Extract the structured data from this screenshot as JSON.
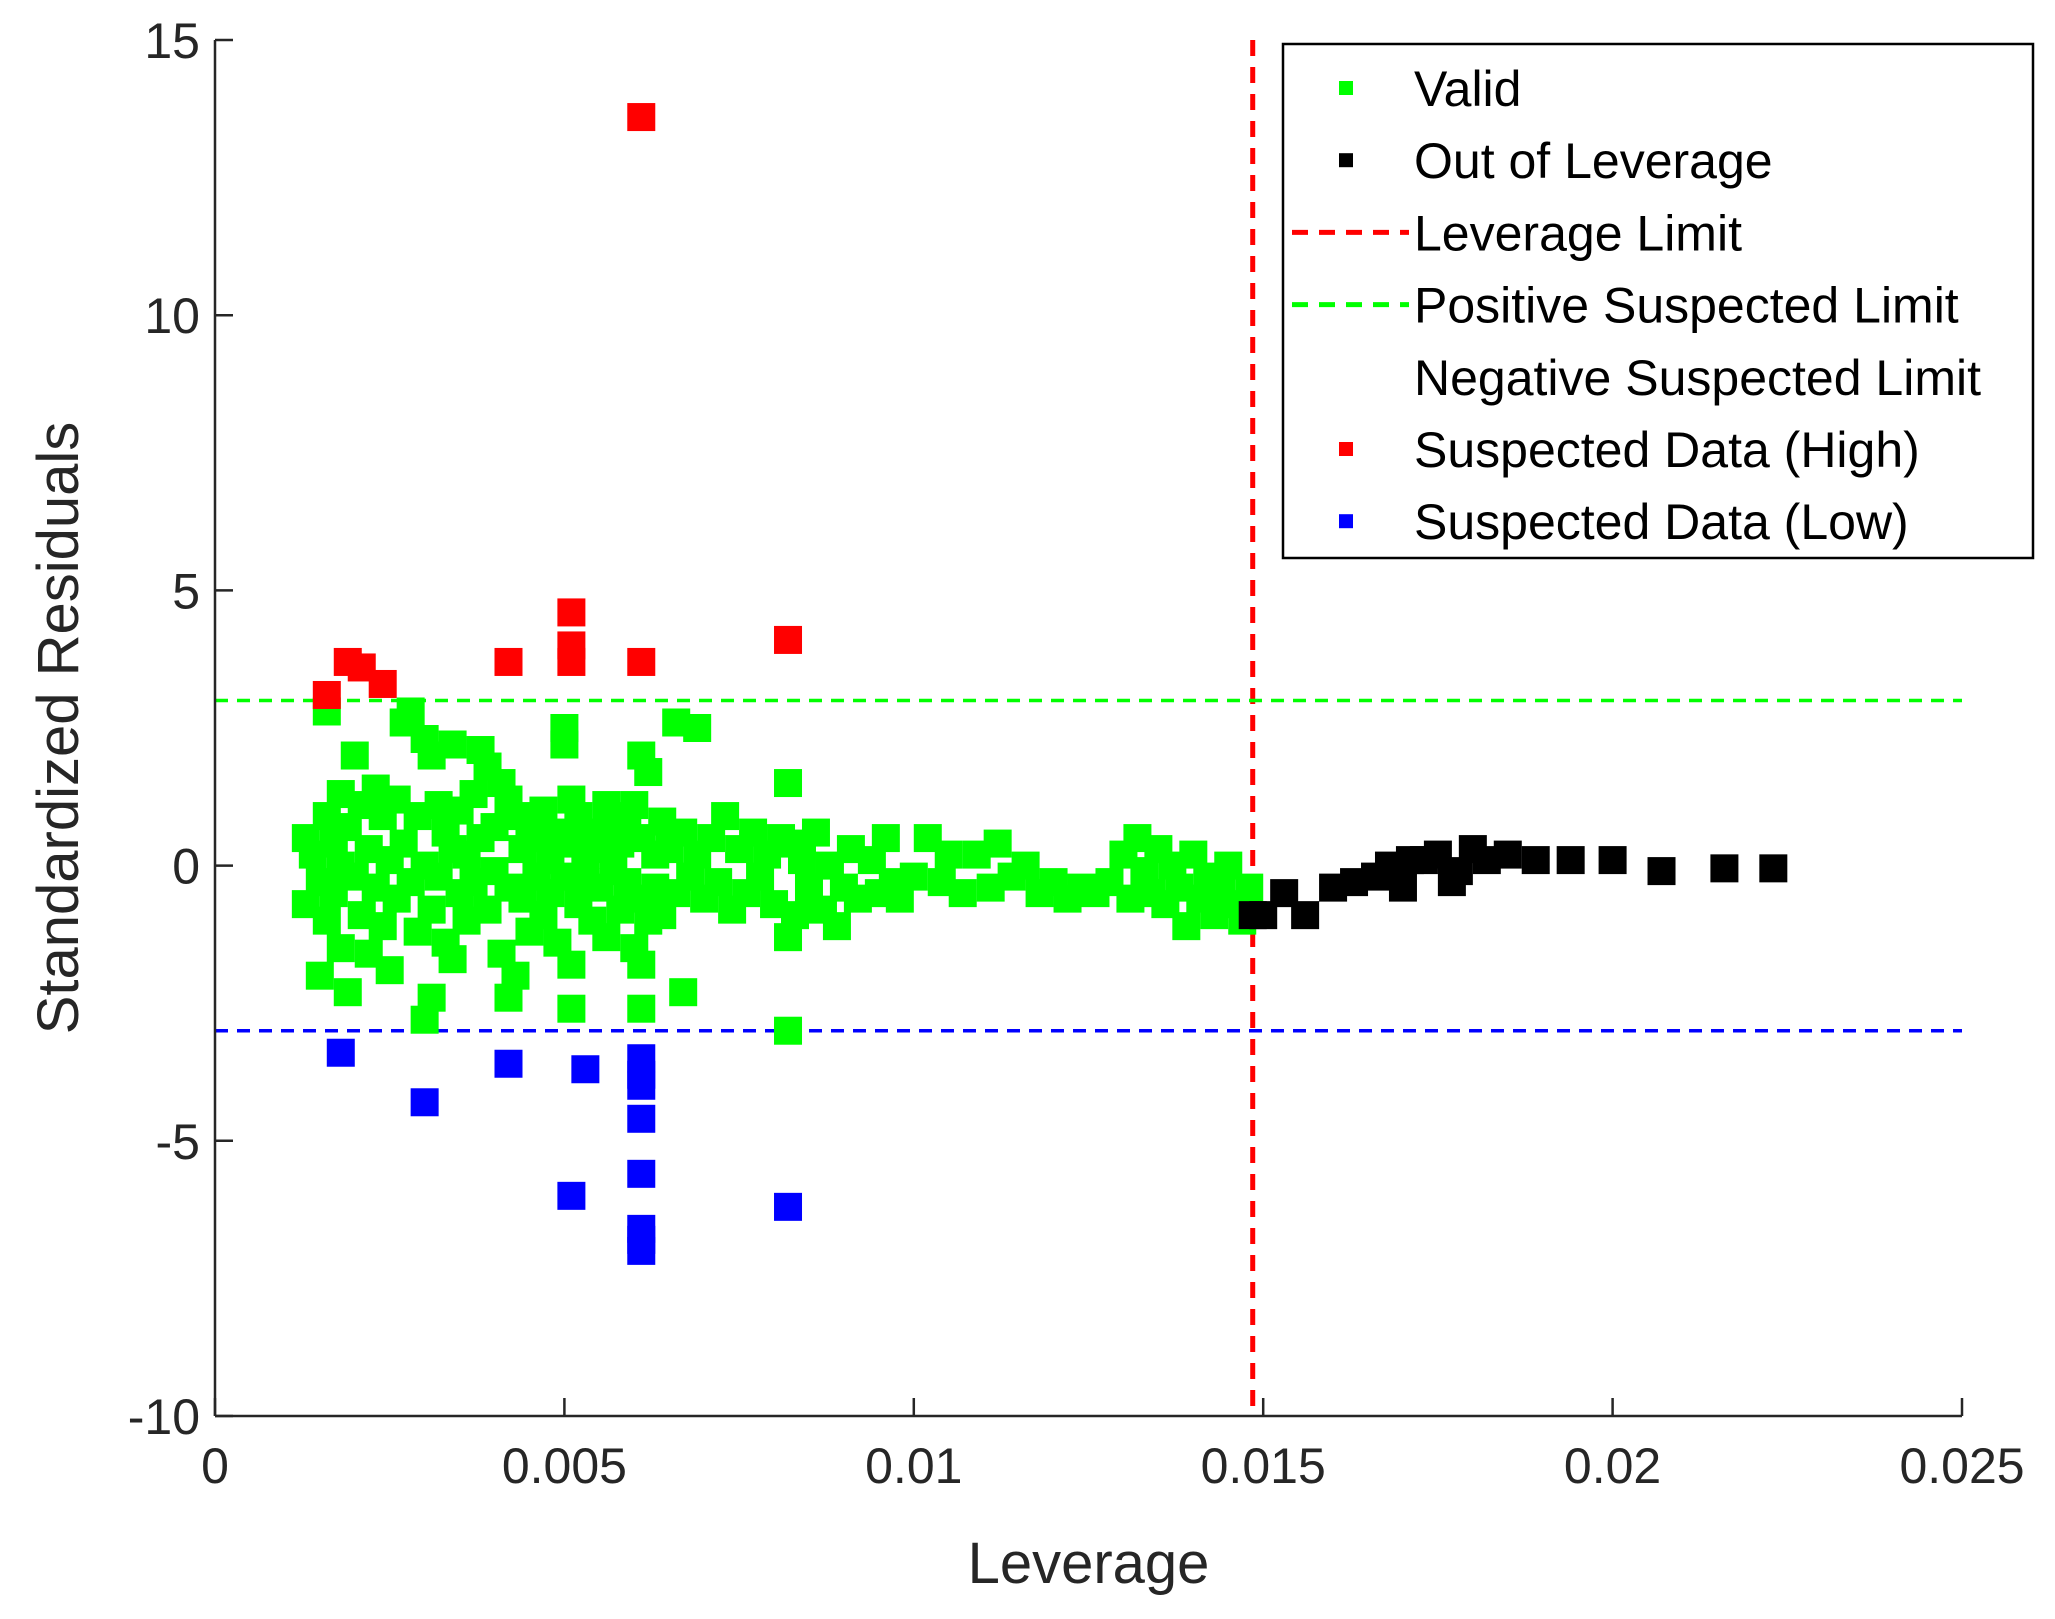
{
  "chart_data": {
    "type": "scatter",
    "title": "",
    "xlabel": "Leverage",
    "ylabel": "Standardized Residuals",
    "xlim": [
      0,
      0.025
    ],
    "ylim": [
      -10,
      15
    ],
    "xticks": [
      0,
      0.005,
      0.01,
      0.015,
      0.02,
      0.025
    ],
    "xtick_labels": [
      "0",
      "0.005",
      "0.01",
      "0.015",
      "0.02",
      "0.025"
    ],
    "yticks": [
      -10,
      -5,
      0,
      5,
      10,
      15
    ],
    "ytick_labels": [
      "-10",
      "-5",
      "0",
      "5",
      "10",
      "15"
    ],
    "grid": false,
    "legend_position": "top-right",
    "reference_lines": [
      {
        "name": "Leverage Limit",
        "orientation": "vertical",
        "value": 0.01485,
        "color": "#ff0000",
        "style": "dashed"
      },
      {
        "name": "Positive Suspected Limit",
        "orientation": "horizontal",
        "value": 3,
        "color": "#00ff00",
        "style": "dashed"
      },
      {
        "name": "Negative Suspected Limit",
        "orientation": "horizontal",
        "value": -3,
        "color": "#0000ff",
        "style": "dashed"
      }
    ],
    "legend": [
      {
        "label": "Valid",
        "kind": "marker",
        "color": "#00ff00"
      },
      {
        "label": "Out of Leverage",
        "kind": "marker",
        "color": "#000000"
      },
      {
        "label": "Leverage Limit",
        "kind": "line",
        "color": "#ff0000"
      },
      {
        "label": "Positive Suspected Limit",
        "kind": "line",
        "color": "#00ff00"
      },
      {
        "label": "Negative Suspected Limit",
        "kind": "none",
        "color": "#0000ff"
      },
      {
        "label": "Suspected Data (High)",
        "kind": "marker",
        "color": "#ff0000"
      },
      {
        "label": "Suspected Data (Low)",
        "kind": "marker",
        "color": "#0000ff"
      }
    ],
    "series": [
      {
        "name": "Valid",
        "color": "#00ff00",
        "points": [
          [
            0.0013,
            0.5
          ],
          [
            0.0013,
            -0.7
          ],
          [
            0.0014,
            0.2
          ],
          [
            0.0015,
            -2.0
          ],
          [
            0.0015,
            -0.3
          ],
          [
            0.0016,
            2.8
          ],
          [
            0.0016,
            0.9
          ],
          [
            0.0016,
            -1.0
          ],
          [
            0.0017,
            0.4
          ],
          [
            0.0017,
            -0.5
          ],
          [
            0.0018,
            1.3
          ],
          [
            0.0018,
            0.0
          ],
          [
            0.0018,
            -1.5
          ],
          [
            0.0019,
            -2.3
          ],
          [
            0.0019,
            0.7
          ],
          [
            0.002,
            2.0
          ],
          [
            0.002,
            -0.2
          ],
          [
            0.0021,
            1.1
          ],
          [
            0.0021,
            -0.9
          ],
          [
            0.0022,
            0.3
          ],
          [
            0.0022,
            -1.6
          ],
          [
            0.0023,
            1.4
          ],
          [
            0.0023,
            -0.4
          ],
          [
            0.0024,
            0.9
          ],
          [
            0.0024,
            -1.1
          ],
          [
            0.0025,
            0.1
          ],
          [
            0.0025,
            -1.9
          ],
          [
            0.0026,
            1.2
          ],
          [
            0.0026,
            -0.6
          ],
          [
            0.0027,
            2.6
          ],
          [
            0.0027,
            0.4
          ],
          [
            0.0028,
            -0.3
          ],
          [
            0.0028,
            2.8
          ],
          [
            0.0029,
            -1.2
          ],
          [
            0.0029,
            0.9
          ],
          [
            0.003,
            2.3
          ],
          [
            0.003,
            -2.8
          ],
          [
            0.003,
            0.0
          ],
          [
            0.0031,
            2.0
          ],
          [
            0.0031,
            -2.4
          ],
          [
            0.0031,
            -0.8
          ],
          [
            0.0032,
            1.1
          ],
          [
            0.0032,
            -0.2
          ],
          [
            0.0033,
            0.6
          ],
          [
            0.0033,
            -1.4
          ],
          [
            0.0034,
            2.2
          ],
          [
            0.0034,
            -1.7
          ],
          [
            0.0034,
            0.3
          ],
          [
            0.0035,
            -0.5
          ],
          [
            0.0035,
            1.0
          ],
          [
            0.0036,
            0.2
          ],
          [
            0.0036,
            -1.0
          ],
          [
            0.0037,
            1.3
          ],
          [
            0.0037,
            -0.3
          ],
          [
            0.0038,
            2.1
          ],
          [
            0.0038,
            0.5
          ],
          [
            0.0039,
            -0.8
          ],
          [
            0.0039,
            1.8
          ],
          [
            0.004,
            -0.1
          ],
          [
            0.004,
            0.7
          ],
          [
            0.0041,
            -1.6
          ],
          [
            0.0041,
            1.5
          ],
          [
            0.0042,
            -2.4
          ],
          [
            0.0042,
            -0.4
          ],
          [
            0.0042,
            1.2
          ],
          [
            0.0043,
            -2.0
          ],
          [
            0.0043,
            0.9
          ],
          [
            0.0044,
            -0.6
          ],
          [
            0.0044,
            0.3
          ],
          [
            0.0045,
            -1.2
          ],
          [
            0.0045,
            0.8
          ],
          [
            0.0046,
            -0.2
          ],
          [
            0.0046,
            0.5
          ],
          [
            0.0047,
            -0.9
          ],
          [
            0.0047,
            1.0
          ],
          [
            0.0048,
            0.1
          ],
          [
            0.0048,
            -0.5
          ],
          [
            0.0049,
            -1.4
          ],
          [
            0.0049,
            0.6
          ],
          [
            0.005,
            -0.2
          ],
          [
            0.005,
            2.5
          ],
          [
            0.005,
            2.2
          ],
          [
            0.0051,
            1.2
          ],
          [
            0.0051,
            -1.8
          ],
          [
            0.0051,
            -2.6
          ],
          [
            0.0051,
            0.4
          ],
          [
            0.0052,
            -0.7
          ],
          [
            0.0052,
            0.9
          ],
          [
            0.0053,
            -0.3
          ],
          [
            0.0053,
            0.2
          ],
          [
            0.0054,
            -1.0
          ],
          [
            0.0054,
            0.6
          ],
          [
            0.0055,
            -0.4
          ],
          [
            0.0055,
            0.3
          ],
          [
            0.0056,
            -1.3
          ],
          [
            0.0056,
            1.1
          ],
          [
            0.0057,
            -0.1
          ],
          [
            0.0057,
            0.7
          ],
          [
            0.0058,
            -0.8
          ],
          [
            0.0058,
            0.4
          ],
          [
            0.0059,
            -0.3
          ],
          [
            0.0059,
            0.9
          ],
          [
            0.006,
            -1.5
          ],
          [
            0.006,
            1.1
          ],
          [
            0.0061,
            2.0
          ],
          [
            0.0061,
            -2.6
          ],
          [
            0.0061,
            -1.8
          ],
          [
            0.0061,
            -0.6
          ],
          [
            0.0061,
            0.5
          ],
          [
            0.0062,
            1.7
          ],
          [
            0.0062,
            -1.0
          ],
          [
            0.0063,
            0.2
          ],
          [
            0.0063,
            -0.4
          ],
          [
            0.0064,
            0.8
          ],
          [
            0.0064,
            -0.9
          ],
          [
            0.0065,
            0.3
          ],
          [
            0.0066,
            2.6
          ],
          [
            0.0066,
            -0.5
          ],
          [
            0.0067,
            -2.3
          ],
          [
            0.0067,
            0.6
          ],
          [
            0.0068,
            -0.2
          ],
          [
            0.0069,
            0.2
          ],
          [
            0.0069,
            2.5
          ],
          [
            0.007,
            -0.6
          ],
          [
            0.0071,
            0.5
          ],
          [
            0.0072,
            -0.3
          ],
          [
            0.0073,
            0.9
          ],
          [
            0.0074,
            -0.8
          ],
          [
            0.0075,
            0.3
          ],
          [
            0.0076,
            -0.5
          ],
          [
            0.0077,
            0.6
          ],
          [
            0.0078,
            -0.2
          ],
          [
            0.0079,
            0.2
          ],
          [
            0.008,
            -0.7
          ],
          [
            0.0081,
            0.5
          ],
          [
            0.0082,
            1.5
          ],
          [
            0.0082,
            -1.3
          ],
          [
            0.0082,
            -3.0
          ],
          [
            0.0083,
            0.4
          ],
          [
            0.0083,
            -0.9
          ],
          [
            0.0084,
            0.1
          ],
          [
            0.0085,
            -0.4
          ],
          [
            0.0086,
            0.6
          ],
          [
            0.0087,
            -0.8
          ],
          [
            0.0088,
            0.0
          ],
          [
            0.0089,
            -1.1
          ],
          [
            0.009,
            -0.4
          ],
          [
            0.0091,
            0.3
          ],
          [
            0.0092,
            -0.6
          ],
          [
            0.0094,
            0.1
          ],
          [
            0.0095,
            -0.5
          ],
          [
            0.0096,
            0.5
          ],
          [
            0.0097,
            -0.3
          ],
          [
            0.0098,
            -0.6
          ],
          [
            0.01,
            -0.2
          ],
          [
            0.0102,
            0.5
          ],
          [
            0.0104,
            -0.3
          ],
          [
            0.0105,
            0.2
          ],
          [
            0.0107,
            -0.5
          ],
          [
            0.0109,
            0.2
          ],
          [
            0.0111,
            -0.4
          ],
          [
            0.0112,
            0.4
          ],
          [
            0.0114,
            -0.2
          ],
          [
            0.0116,
            0.0
          ],
          [
            0.0118,
            -0.5
          ],
          [
            0.012,
            -0.3
          ],
          [
            0.0122,
            -0.6
          ],
          [
            0.0124,
            -0.4
          ],
          [
            0.0126,
            -0.5
          ],
          [
            0.0128,
            -0.3
          ],
          [
            0.013,
            0.2
          ],
          [
            0.0131,
            -0.6
          ],
          [
            0.0132,
            0.5
          ],
          [
            0.0133,
            -0.1
          ],
          [
            0.0134,
            -0.5
          ],
          [
            0.0135,
            0.3
          ],
          [
            0.0136,
            -0.7
          ],
          [
            0.0137,
            0.0
          ],
          [
            0.0138,
            -0.4
          ],
          [
            0.0139,
            -1.1
          ],
          [
            0.014,
            0.2
          ],
          [
            0.0141,
            -0.6
          ],
          [
            0.0142,
            -0.2
          ],
          [
            0.0143,
            -0.9
          ],
          [
            0.0144,
            -0.5
          ],
          [
            0.0145,
            0.0
          ],
          [
            0.0146,
            -0.7
          ],
          [
            0.0147,
            -1.0
          ],
          [
            0.0148,
            -0.4
          ]
        ]
      },
      {
        "name": "Out of Leverage",
        "color": "#000000",
        "points": [
          [
            0.01485,
            -0.9
          ],
          [
            0.015,
            -0.9
          ],
          [
            0.0153,
            -0.5
          ],
          [
            0.0156,
            -0.9
          ],
          [
            0.016,
            -0.4
          ],
          [
            0.0163,
            -0.3
          ],
          [
            0.0166,
            -0.2
          ],
          [
            0.0168,
            0.0
          ],
          [
            0.017,
            -0.4
          ],
          [
            0.0171,
            0.1
          ],
          [
            0.0173,
            0.1
          ],
          [
            0.0175,
            0.2
          ],
          [
            0.0177,
            -0.3
          ],
          [
            0.0178,
            -0.1
          ],
          [
            0.018,
            0.3
          ],
          [
            0.0182,
            0.1
          ],
          [
            0.0185,
            0.2
          ],
          [
            0.0189,
            0.1
          ],
          [
            0.0194,
            0.1
          ],
          [
            0.02,
            0.1
          ],
          [
            0.0207,
            -0.1
          ],
          [
            0.0216,
            -0.05
          ],
          [
            0.0223,
            -0.05
          ]
        ]
      },
      {
        "name": "Suspected Data (High)",
        "color": "#ff0000",
        "points": [
          [
            0.0016,
            3.1
          ],
          [
            0.0019,
            3.7
          ],
          [
            0.0021,
            3.6
          ],
          [
            0.0024,
            3.3
          ],
          [
            0.0042,
            3.7
          ],
          [
            0.0051,
            4.6
          ],
          [
            0.0051,
            4.0
          ],
          [
            0.0051,
            3.7
          ],
          [
            0.0061,
            13.6
          ],
          [
            0.0061,
            3.7
          ],
          [
            0.0082,
            4.1
          ]
        ]
      },
      {
        "name": "Suspected Data (Low)",
        "color": "#0000ff",
        "points": [
          [
            0.0018,
            -3.4
          ],
          [
            0.003,
            -4.3
          ],
          [
            0.0042,
            -3.6
          ],
          [
            0.0051,
            -6.0
          ],
          [
            0.0053,
            -3.7
          ],
          [
            0.0061,
            -3.5
          ],
          [
            0.0061,
            -3.8
          ],
          [
            0.0061,
            -4.0
          ],
          [
            0.0061,
            -4.6
          ],
          [
            0.0061,
            -5.6
          ],
          [
            0.0061,
            -6.6
          ],
          [
            0.0061,
            -6.8
          ],
          [
            0.0061,
            -7.0
          ],
          [
            0.0082,
            -6.2
          ]
        ]
      }
    ]
  }
}
